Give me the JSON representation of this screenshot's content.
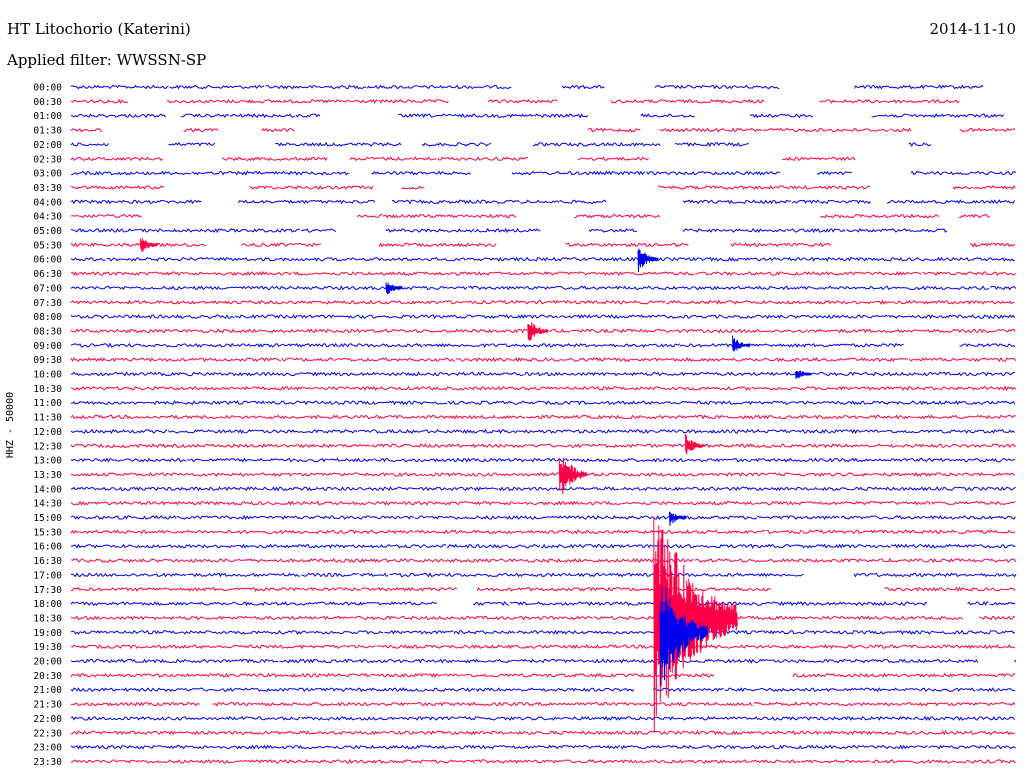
{
  "header": {
    "station": "HT Litochorio (Katerini)",
    "date": "2014-11-10",
    "filter": "Applied filter: WWSSN-SP"
  },
  "chart_data": {
    "type": "line",
    "title": "HT Litochorio (Katerini)",
    "subtitle": "Applied filter: WWSSN-SP",
    "ylabel": "HHZ - 50000",
    "xlabel": "",
    "colors": [
      "#0000ee",
      "#ff0044"
    ],
    "rows": [
      "00:00",
      "00:30",
      "01:00",
      "01:30",
      "02:00",
      "02:30",
      "03:00",
      "03:30",
      "04:00",
      "04:30",
      "05:00",
      "05:30",
      "06:00",
      "06:30",
      "07:00",
      "07:30",
      "08:00",
      "08:30",
      "09:00",
      "09:30",
      "10:00",
      "10:30",
      "11:00",
      "11:30",
      "12:00",
      "12:30",
      "13:00",
      "13:30",
      "14:00",
      "14:30",
      "15:00",
      "15:30",
      "16:00",
      "16:30",
      "17:00",
      "17:30",
      "18:00",
      "18:30",
      "19:00",
      "19:30",
      "20:00",
      "20:30",
      "21:00",
      "21:30",
      "22:00",
      "22:30",
      "23:00",
      "23:30"
    ],
    "events": [
      {
        "row": "05:30",
        "minute": 2.2,
        "amplitude": 10
      },
      {
        "row": "06:00",
        "minute": 18.0,
        "amplitude": 14
      },
      {
        "row": "07:00",
        "minute": 10.0,
        "amplitude": 8
      },
      {
        "row": "08:30",
        "minute": 14.5,
        "amplitude": 14
      },
      {
        "row": "09:00",
        "minute": 21.0,
        "amplitude": 10
      },
      {
        "row": "10:00",
        "minute": 23.0,
        "amplitude": 7
      },
      {
        "row": "12:30",
        "minute": 19.5,
        "amplitude": 12
      },
      {
        "row": "13:30",
        "minute": 15.5,
        "amplitude": 26
      },
      {
        "row": "15:00",
        "minute": 19.0,
        "amplitude": 9
      },
      {
        "row": "18:30",
        "minute": 18.5,
        "amplitude": 120
      },
      {
        "row": "19:00",
        "minute": 18.7,
        "amplitude": 60
      }
    ]
  }
}
